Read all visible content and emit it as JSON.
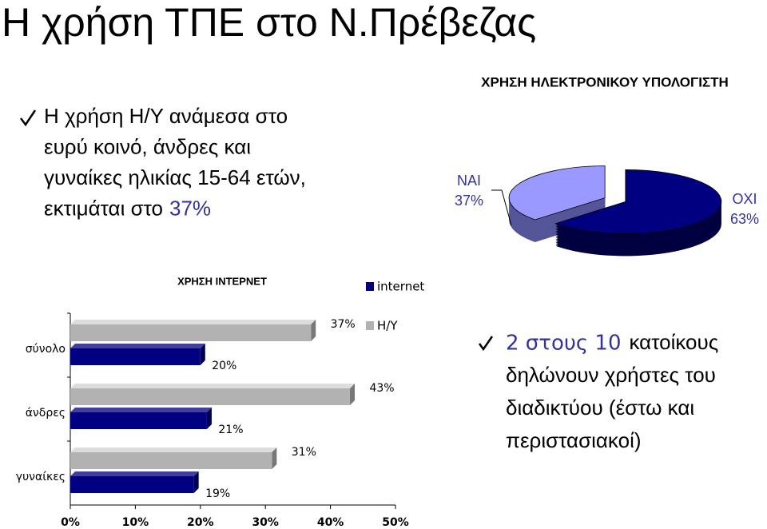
{
  "title": "Η χρήση ΤΠΕ στο Ν.Πρέβεζας",
  "bullet1": {
    "lines": [
      "Η χρήση Η/Υ ανάμεσα στο",
      "ευρύ κοινό, άνδρες και",
      "γυναίκες ηλικίας 15-64 ετών,",
      "εκτιμάται στο"
    ],
    "highlight": "37%"
  },
  "bullet2": {
    "highlight": "2 στους 10",
    "lines": [
      "κατοίκους",
      "δηλώνουν χρήστες του",
      "διαδικτύου (έστω και",
      "περιστασιακοί)"
    ]
  },
  "chart_data": [
    {
      "type": "pie",
      "title": "ΧΡΗΣΗ ΗΛΕΚΤΡΟΝΙΚΟΥ ΥΠΟΛΟΓΙΣΤΗ",
      "categories": [
        "ΝΑΙ",
        "ΟΧΙ"
      ],
      "values": [
        37,
        63
      ],
      "value_labels": [
        "37%",
        "63%"
      ],
      "colors": [
        "#9999ff",
        "#000080"
      ]
    },
    {
      "type": "bar",
      "orientation": "horizontal",
      "title": "ΧΡΗΣΗ ΙΝΤΕΡΝΕΤ",
      "categories": [
        "σύνολο",
        "άνδρες",
        "γυναίκες"
      ],
      "series": [
        {
          "name": "internet",
          "color": "#000080",
          "values": [
            20,
            21,
            19
          ],
          "value_labels": [
            "20%",
            "21%",
            "19%"
          ]
        },
        {
          "name": "Η/Υ",
          "color": "#b2b2b2",
          "values": [
            37,
            43,
            31
          ],
          "value_labels": [
            "37%",
            "43%",
            "31%"
          ]
        }
      ],
      "xlim": [
        0,
        50
      ],
      "xticks": [
        {
          "value": 0,
          "label": "0%"
        },
        {
          "value": 10,
          "label": "10%"
        },
        {
          "value": 20,
          "label": "20%"
        },
        {
          "value": 30,
          "label": "30%"
        },
        {
          "value": 40,
          "label": "40%"
        },
        {
          "value": 50,
          "label": "50%"
        }
      ]
    }
  ]
}
